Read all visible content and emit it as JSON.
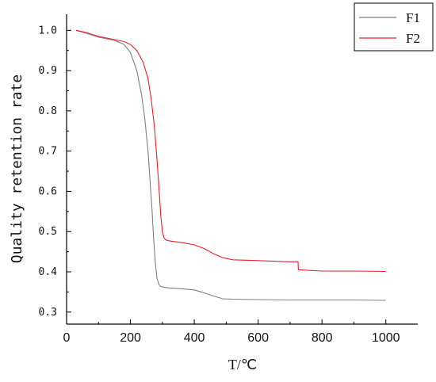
{
  "chart_data": {
    "type": "line",
    "xlabel": "T/℃",
    "ylabel": "Quality retention rate",
    "xlim": [
      0,
      1100
    ],
    "ylim": [
      0.27,
      1.04
    ],
    "xticks": [
      0,
      200,
      400,
      600,
      800,
      1000
    ],
    "yticks": [
      0.3,
      0.4,
      0.5,
      0.6,
      0.7,
      0.8,
      0.9,
      1.0
    ],
    "ytick_labels": [
      "0.3",
      "0.4",
      "0.5",
      "0.6",
      "0.7",
      "0.8",
      "0.9",
      "1.0"
    ],
    "grid": false,
    "legend_position": "top-right",
    "series": [
      {
        "name": "F1",
        "color": "#7f7f7f",
        "x": [
          30,
          60,
          100,
          150,
          180,
          200,
          220,
          235,
          245,
          255,
          262,
          268,
          273,
          278,
          283,
          288,
          293,
          298,
          305,
          320,
          360,
          400,
          430,
          460,
          490,
          520,
          600,
          700,
          800,
          900,
          1000
        ],
        "y": [
          1.0,
          0.993,
          0.983,
          0.975,
          0.965,
          0.945,
          0.9,
          0.84,
          0.78,
          0.7,
          0.62,
          0.55,
          0.48,
          0.42,
          0.385,
          0.37,
          0.365,
          0.363,
          0.362,
          0.36,
          0.358,
          0.355,
          0.348,
          0.34,
          0.333,
          0.332,
          0.331,
          0.33,
          0.33,
          0.33,
          0.329
        ]
      },
      {
        "name": "F2",
        "color": "#e8202a",
        "x": [
          30,
          60,
          100,
          150,
          180,
          200,
          220,
          240,
          255,
          265,
          275,
          283,
          290,
          295,
          300,
          305,
          310,
          315,
          330,
          360,
          400,
          430,
          460,
          490,
          520,
          600,
          700,
          725,
          726,
          800,
          900,
          1000
        ],
        "y": [
          1.0,
          0.995,
          0.985,
          0.977,
          0.972,
          0.965,
          0.95,
          0.92,
          0.88,
          0.83,
          0.76,
          0.68,
          0.6,
          0.54,
          0.5,
          0.485,
          0.48,
          0.478,
          0.476,
          0.473,
          0.467,
          0.458,
          0.445,
          0.435,
          0.43,
          0.428,
          0.425,
          0.425,
          0.405,
          0.402,
          0.402,
          0.401
        ]
      }
    ]
  }
}
